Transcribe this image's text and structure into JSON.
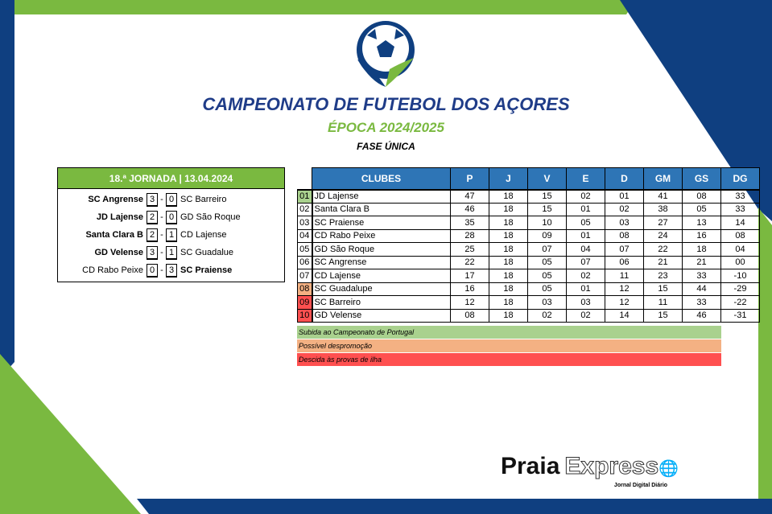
{
  "colors": {
    "blue": "#0f3f80",
    "green": "#7ab940",
    "header_blue": "#2e75b6",
    "promo": "#a9d18e",
    "possible_relegation": "#f4b183",
    "relegation": "#ff5050"
  },
  "header": {
    "title": "CAMPEONATO DE FUTEBOL DOS AÇORES",
    "season": "ÉPOCA 2024/2025",
    "phase": "FASE ÚNICA"
  },
  "jornada": {
    "title": "18.ª JORNADA | 13.04.2024",
    "matches": [
      {
        "home": "SC Angrense",
        "hs": "3",
        "as": "0",
        "away": "SC Barreiro",
        "winner": "home"
      },
      {
        "home": "JD Lajense",
        "hs": "2",
        "as": "0",
        "away": "GD São Roque",
        "winner": "home"
      },
      {
        "home": "Santa Clara B",
        "hs": "2",
        "as": "1",
        "away": "CD Lajense",
        "winner": "home"
      },
      {
        "home": "GD Velense",
        "hs": "3",
        "as": "1",
        "away": "SC Guadalue",
        "winner": "home"
      },
      {
        "home": "CD Rabo Peixe",
        "hs": "0",
        "as": "3",
        "away": "SC Praiense",
        "winner": "away"
      }
    ],
    "separator": "-"
  },
  "standings": {
    "columns": [
      "CLUBES",
      "P",
      "J",
      "V",
      "E",
      "D",
      "GM",
      "GS",
      "DG"
    ],
    "rows": [
      [
        "01",
        "JD Lajense",
        "47",
        "18",
        "15",
        "02",
        "01",
        "41",
        "08",
        "33"
      ],
      [
        "02",
        "Santa Clara B",
        "46",
        "18",
        "15",
        "01",
        "02",
        "38",
        "05",
        "33"
      ],
      [
        "03",
        "SC Praiense",
        "35",
        "18",
        "10",
        "05",
        "03",
        "27",
        "13",
        "14"
      ],
      [
        "04",
        "CD Rabo Peixe",
        "28",
        "18",
        "09",
        "01",
        "08",
        "24",
        "16",
        "08"
      ],
      [
        "05",
        "GD São Roque",
        "25",
        "18",
        "07",
        "04",
        "07",
        "22",
        "18",
        "04"
      ],
      [
        "06",
        "SC Angrense",
        "22",
        "18",
        "05",
        "07",
        "06",
        "21",
        "21",
        "00"
      ],
      [
        "07",
        "CD Lajense",
        "17",
        "18",
        "05",
        "02",
        "11",
        "23",
        "33",
        "-10"
      ],
      [
        "08",
        "SC Guadalupe",
        "16",
        "18",
        "05",
        "01",
        "12",
        "15",
        "44",
        "-29"
      ],
      [
        "09",
        "SC Barreiro",
        "12",
        "18",
        "03",
        "03",
        "12",
        "11",
        "33",
        "-22"
      ],
      [
        "10",
        "GD Velense",
        "08",
        "18",
        "02",
        "02",
        "14",
        "15",
        "46",
        "-31"
      ]
    ],
    "zones": [
      "promo",
      "",
      "",
      "",
      "",
      "",
      "",
      "possible_relegation",
      "relegation",
      "relegation"
    ]
  },
  "legend": [
    "Subida ao Campeonato de Portugal",
    "Possível despromoção",
    "Descida às provas de ilha"
  ],
  "brand": {
    "name1": "Praia",
    "name2": "Express",
    "tagline": "Jornal Digital Diário"
  }
}
